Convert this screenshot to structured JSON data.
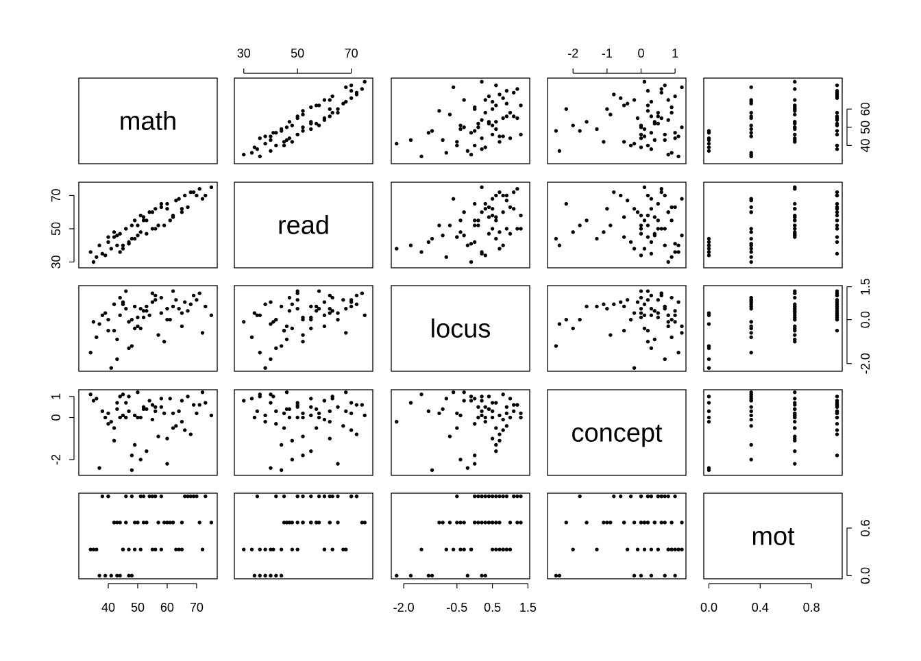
{
  "chart_data": {
    "type": "pairs",
    "color": "#000000",
    "variables": [
      {
        "name": "math",
        "lim": [
          30,
          77
        ],
        "xticks": [
          40,
          50,
          60,
          70
        ],
        "yticks": [
          40,
          50,
          60
        ],
        "values": [
          38,
          42,
          45,
          50,
          55,
          60,
          65,
          70,
          48,
          52,
          36,
          40,
          44,
          47,
          53,
          58,
          62,
          68,
          72,
          75,
          41,
          46,
          51,
          56,
          61,
          66,
          34,
          39,
          43,
          49,
          54,
          59,
          63,
          67,
          71,
          37,
          45,
          52,
          57,
          64,
          46,
          50,
          55,
          43,
          48,
          53,
          58,
          62,
          40,
          44,
          65,
          69,
          35,
          42,
          47,
          51,
          56,
          60,
          73,
          49
        ]
      },
      {
        "name": "read",
        "lim": [
          26.5,
          78
        ],
        "xticks": [
          30,
          50,
          70
        ],
        "yticks": [
          30,
          50,
          70
        ],
        "values": [
          35,
          45,
          40,
          52,
          50,
          62,
          60,
          70,
          44,
          57,
          33,
          42,
          47,
          41,
          55,
          65,
          58,
          72,
          68,
          75,
          38,
          50,
          48,
          62,
          55,
          70,
          36,
          34,
          46,
          44,
          60,
          52,
          67,
          63,
          74,
          40,
          38,
          55,
          52,
          68,
          50,
          46,
          60,
          40,
          52,
          47,
          63,
          57,
          45,
          36,
          62,
          72,
          30,
          48,
          42,
          58,
          50,
          65,
          70,
          55
        ]
      },
      {
        "name": "locus",
        "lim": [
          -2.35,
          1.55
        ],
        "xticks": [
          {
            "value": -2,
            "label": "-2.0"
          },
          -0.5,
          0.5,
          1.5
        ],
        "yticks": [
          {
            "value": -2,
            "label": "-2.0"
          },
          {
            "value": 0,
            "label": "0.0"
          },
          1.5
        ],
        "values": [
          0.2,
          -0.5,
          0.8,
          0.1,
          1.2,
          0.5,
          -0.3,
          0.9,
          -1.2,
          0.4,
          -0.8,
          0.0,
          1.0,
          -0.1,
          0.6,
          0.3,
          1.3,
          0.7,
          -0.6,
          0.2,
          -2.2,
          0.5,
          -0.4,
          1.1,
          0.0,
          0.8,
          -1.5,
          0.3,
          -0.9,
          0.6,
          0.2,
          -1.0,
          0.9,
          0.4,
          1.2,
          -0.2,
          0.7,
          0.1,
          -0.7,
          0.5,
          1.3,
          -0.3,
          0.8,
          -1.8,
          0.0,
          0.4,
          1.0,
          0.6,
          -0.5,
          0.2,
          0.3,
          1.1,
          -0.1,
          0.7,
          -1.3,
          0.5,
          0.9,
          0.0,
          0.6,
          -0.4
        ]
      },
      {
        "name": "concept",
        "lim": [
          -2.75,
          1.32
        ],
        "xticks": [
          -2,
          -1,
          0,
          1
        ],
        "yticks": [
          -2,
          0,
          1
        ],
        "values": [
          0.3,
          -0.5,
          1.1,
          0.0,
          0.6,
          -1.0,
          0.8,
          0.2,
          -2.5,
          0.4,
          0.9,
          -0.3,
          0.0,
          1.0,
          -1.6,
          0.5,
          0.2,
          -0.8,
          1.2,
          0.1,
          -0.2,
          0.7,
          -2.0,
          0.3,
          0.9,
          -0.6,
          1.1,
          0.0,
          0.4,
          -1.3,
          0.8,
          0.2,
          -0.4,
          1.0,
          0.6,
          -2.4,
          0.1,
          0.5,
          -0.9,
          0.3,
          0.0,
          1.2,
          -0.1,
          0.7,
          -1.8,
          0.4,
          0.9,
          -0.5,
          0.2,
          1.0,
          -0.2,
          0.6,
          0.8,
          -1.1,
          0.3,
          0.0,
          0.5,
          -2.2,
          0.7,
          0.1
        ]
      },
      {
        "name": "mot",
        "lim": [
          -0.04,
          1.04
        ],
        "xticks": [
          {
            "value": 0,
            "label": "0.0"
          },
          0.4,
          0.8
        ],
        "yticks": [
          {
            "value": 0,
            "label": "0.0"
          },
          0.6
        ],
        "values": [
          1,
          0.67,
          0.33,
          0.67,
          1,
          0.67,
          0.33,
          1,
          0,
          0.67,
          0.33,
          1,
          0.67,
          0.33,
          0.67,
          1,
          0.67,
          1,
          0.33,
          0.67,
          0,
          0.67,
          0.33,
          1,
          0.67,
          1,
          0.33,
          0,
          0.67,
          0.33,
          1,
          0.67,
          0.33,
          1,
          0.67,
          0,
          0.33,
          1,
          0.67,
          0.33,
          1,
          0.67,
          0.33,
          0,
          1,
          0.67,
          0.33,
          0.67,
          1,
          0,
          0.67,
          1,
          0.33,
          0.67,
          0,
          1,
          0.33,
          0.67,
          1,
          0.67
        ]
      }
    ]
  }
}
